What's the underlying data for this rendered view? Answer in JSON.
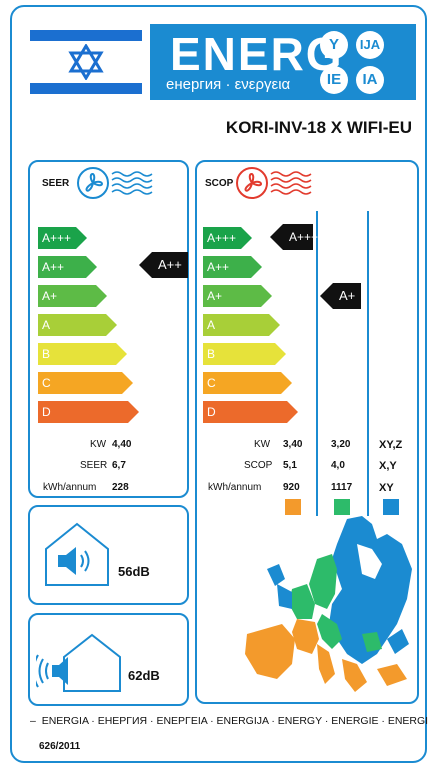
{
  "header": {
    "energy_title": "ENERG",
    "energy_subtitle": "енергия · ενεργεια",
    "circles": [
      "Y",
      "IJA",
      "IE",
      "IA"
    ],
    "model": "KORI-INV-18 X WIFI-EU"
  },
  "classes": [
    "A+++",
    "A++",
    "A+",
    "A",
    "B",
    "C",
    "D"
  ],
  "class_colors": [
    "#1aa34a",
    "#3db04a",
    "#5dbb46",
    "#a8cf38",
    "#e6e23a",
    "#f5a623",
    "#ec6a2b"
  ],
  "seer_panel": {
    "title": "SEER",
    "class_indicator": "A++",
    "rows": [
      {
        "label": "KW",
        "value": "4,40"
      },
      {
        "label": "SEER",
        "value": "6,7"
      },
      {
        "label": "kWh/annum",
        "value": "228"
      }
    ]
  },
  "scop_panel": {
    "title": "SCOP",
    "indicator_warm": "A+++",
    "indicator_average": "A+",
    "rows": [
      {
        "label": "KW",
        "warm": "3,40",
        "average": "3,20",
        "cold": "XY,Z"
      },
      {
        "label": "SCOP",
        "warm": "5,1",
        "average": "4,0",
        "cold": "X,Y"
      },
      {
        "label": "kWh/annum",
        "warm": "920",
        "average": "1117",
        "cold": "XY"
      }
    ],
    "zone_colors": [
      "#f39a2c",
      "#2dbb6a",
      "#1b8bd1"
    ]
  },
  "noise": {
    "indoor": "56dB",
    "outdoor": "62dB"
  },
  "footer": {
    "languages": "ENERGIA · ЕНЕРГИЯ · ΕΝΕΡΓΕΙΑ · ENERGIJA · ENERGY · ENERGIE · ENERGI",
    "regulation": "626/2011"
  }
}
